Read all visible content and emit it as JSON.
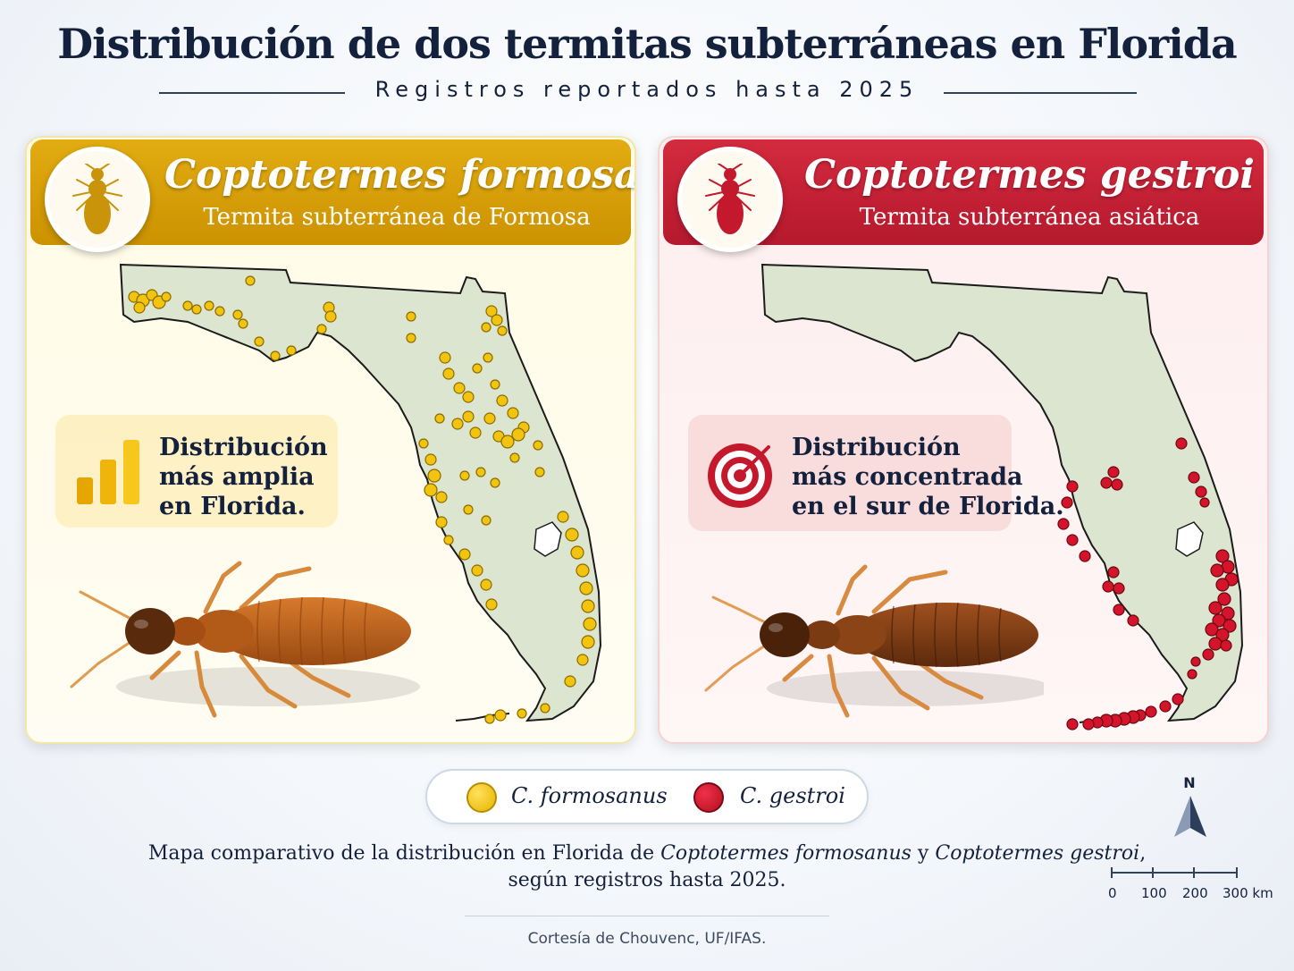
{
  "title": "Distribución de dos termitas subterráneas en Florida",
  "subtitle": "Registros reportados hasta 2025",
  "panels": {
    "left": {
      "species": "Coptotermes formosanus",
      "common_name": "Termita subterránea de Formosa",
      "callout": [
        "Distribución",
        "más amplia",
        "en Florida."
      ],
      "callout_icon": "bar-chart-icon",
      "color": "#f2c40f"
    },
    "right": {
      "species": "Coptotermes gestroi",
      "common_name": "Termita subterránea asiática",
      "callout": [
        "Distribución",
        "más concentrada",
        "en el sur de Florida."
      ],
      "callout_icon": "target-icon",
      "color": "#d4142b"
    }
  },
  "legend": {
    "formosanus": "C. formosanus",
    "gestroi": "C. gestroi"
  },
  "caption": {
    "line1_a": "Mapa comparativo de la distribución en Florida de ",
    "line1_b": "Coptotermes formosanus",
    "line1_c": " y ",
    "line1_d": "Coptotermes gestroi",
    "line1_e": ",",
    "line2": "según registros hasta 2025."
  },
  "credit": "Cortesía de Chouvenc, UF/IFAS.",
  "north_label": "N",
  "scale": [
    "0",
    "100",
    "200",
    "300 km"
  ]
}
